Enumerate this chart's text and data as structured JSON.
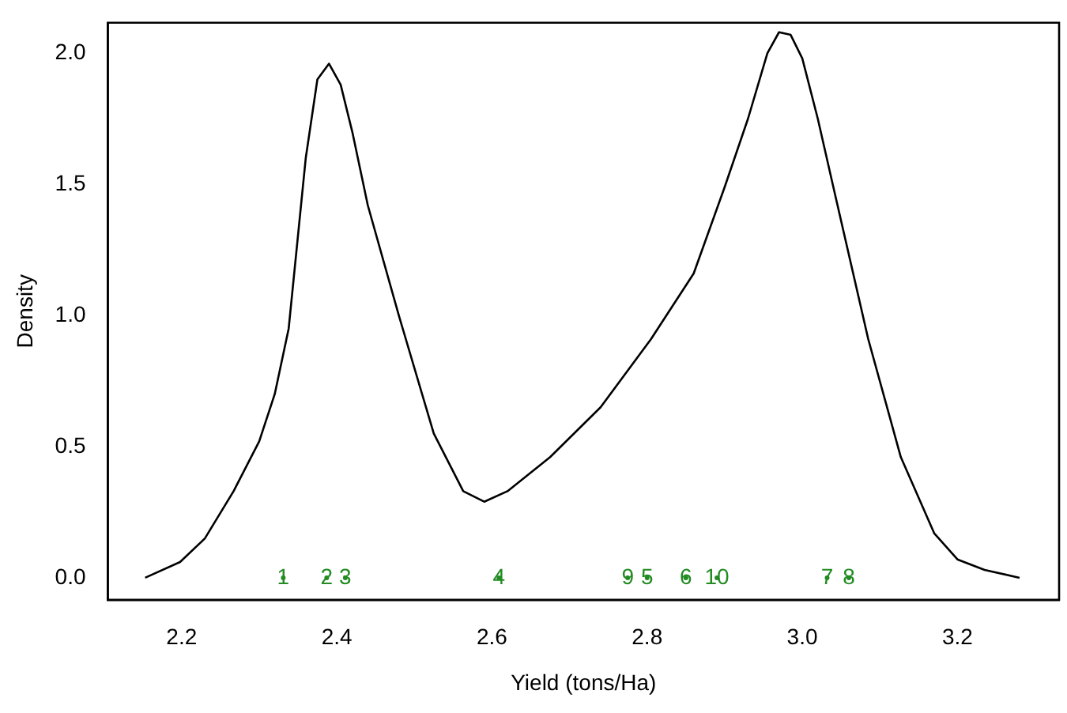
{
  "chart_data": {
    "type": "line",
    "xlabel": "Yield (tons/Ha)",
    "ylabel": "Density",
    "xlim": [
      2.105,
      3.331
    ],
    "xticks": [
      2.2,
      2.4,
      2.6,
      2.8,
      {
        "value": 3.0,
        "label": "3.0"
      },
      3.2
    ],
    "ylim": [
      -0.084,
      2.116
    ],
    "yticks": [
      {
        "value": 0,
        "label": "0.0"
      },
      0.5,
      {
        "value": 1,
        "label": "1.0"
      },
      1.5,
      {
        "value": 2,
        "label": "2.0"
      }
    ],
    "grid": false,
    "legend": false,
    "line_style": "solid",
    "series": [
      {
        "color": "#000000",
        "x": [
          2.153,
          2.198,
          2.23,
          2.267,
          2.3,
          2.32,
          2.338,
          2.36,
          2.375,
          2.39,
          2.405,
          2.42,
          2.44,
          2.48,
          2.525,
          2.563,
          2.59,
          2.62,
          2.675,
          2.74,
          2.805,
          2.86,
          2.9,
          2.93,
          2.955,
          2.97,
          2.985,
          3.0,
          3.02,
          3.04,
          3.085,
          3.127,
          3.17,
          3.2,
          3.235,
          3.28
        ],
        "values": [
          0.0,
          0.06,
          0.15,
          0.33,
          0.52,
          0.7,
          0.95,
          1.6,
          1.9,
          1.96,
          1.88,
          1.7,
          1.42,
          1.0,
          0.55,
          0.33,
          0.29,
          0.33,
          0.46,
          0.65,
          0.91,
          1.16,
          1.49,
          1.75,
          2.0,
          2.08,
          2.07,
          1.98,
          1.75,
          1.49,
          0.91,
          0.46,
          0.17,
          0.07,
          0.03,
          0.0
        ]
      },
      {
        "type": "scatter",
        "color": "#228b22",
        "x": [
          2.331,
          2.387,
          2.411,
          2.609,
          2.8,
          2.85,
          3.032,
          3.06,
          2.775,
          2.89
        ],
        "values": [
          0,
          0,
          0,
          0,
          0,
          0,
          0,
          0,
          0,
          0
        ]
      }
    ],
    "annotations": [
      {
        "text": "1",
        "x": 2.331,
        "y": 0
      },
      {
        "text": "2",
        "x": 2.387,
        "y": 0
      },
      {
        "text": "3",
        "x": 2.411,
        "y": 0
      },
      {
        "text": "4",
        "x": 2.609,
        "y": 0
      },
      {
        "text": "5",
        "x": 2.8,
        "y": 0
      },
      {
        "text": "6",
        "x": 2.85,
        "y": 0
      },
      {
        "text": "7",
        "x": 3.032,
        "y": 0
      },
      {
        "text": "8",
        "x": 3.06,
        "y": 0
      },
      {
        "text": "9",
        "x": 2.775,
        "y": 0
      },
      {
        "text": "10",
        "x": 2.89,
        "y": 0
      }
    ]
  }
}
